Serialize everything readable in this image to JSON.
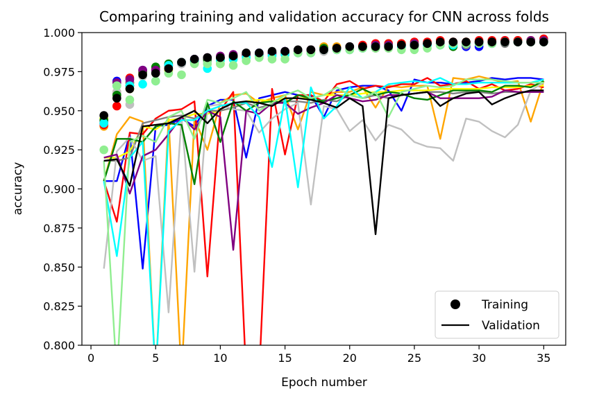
{
  "chart_data": {
    "type": "line",
    "title": "Comparing training and validation accuracy for CNN across folds",
    "xlabel": "Epoch number",
    "ylabel": "accuracy",
    "xlim": [
      -0.7,
      36.7
    ],
    "ylim": [
      0.8,
      1.0
    ],
    "xticks": [
      0,
      5,
      10,
      15,
      20,
      25,
      30,
      35
    ],
    "yticks": [
      0.8,
      0.825,
      0.85,
      0.875,
      0.9,
      0.925,
      0.95,
      0.975,
      1.0
    ],
    "ytick_labels": [
      "0.800",
      "0.825",
      "0.850",
      "0.875",
      "0.900",
      "0.925",
      "0.950",
      "0.975",
      "1.000"
    ],
    "legend": {
      "position": "bottom-right",
      "entries": [
        {
          "label": "Training",
          "marker": "circle",
          "color": "#000000"
        },
        {
          "label": "Validation",
          "marker": "line",
          "color": "#000000"
        }
      ]
    },
    "epochs": [
      1,
      2,
      3,
      4,
      5,
      6,
      7,
      8,
      9,
      10,
      11,
      12,
      13,
      14,
      15,
      16,
      17,
      18,
      19,
      20,
      21,
      22,
      23,
      24,
      25,
      26,
      27,
      28,
      29,
      30,
      31,
      32,
      33,
      34,
      35
    ],
    "series": [
      {
        "color": "#0000ff",
        "training": [
          0.942,
          0.969,
          0.968,
          0.976,
          0.976,
          0.979,
          0.981,
          0.983,
          0.982,
          0.984,
          0.985,
          0.986,
          0.987,
          0.987,
          0.988,
          0.988,
          0.989,
          0.99,
          0.99,
          0.991,
          0.991,
          0.992,
          0.992,
          0.992,
          0.992,
          0.993,
          0.993,
          0.993,
          0.991,
          0.991,
          0.994,
          0.995,
          0.995,
          0.995,
          0.995
        ],
        "validation": [
          0.905,
          0.905,
          0.935,
          0.849,
          0.94,
          0.941,
          0.945,
          0.94,
          0.953,
          0.957,
          0.957,
          0.92,
          0.958,
          0.96,
          0.962,
          0.96,
          0.96,
          0.946,
          0.963,
          0.965,
          0.966,
          0.966,
          0.963,
          0.95,
          0.97,
          0.968,
          0.968,
          0.967,
          0.968,
          0.969,
          0.971,
          0.97,
          0.971,
          0.971,
          0.97
        ]
      },
      {
        "color": "#ffa500",
        "training": [
          0.94,
          0.962,
          0.968,
          0.975,
          0.977,
          0.978,
          0.981,
          0.982,
          0.983,
          0.98,
          0.983,
          0.985,
          0.985,
          0.986,
          0.987,
          0.988,
          0.989,
          0.991,
          0.991,
          0.99,
          0.991,
          0.992,
          0.993,
          0.993,
          0.992,
          0.993,
          0.993,
          0.992,
          0.994,
          0.994,
          0.994,
          0.994,
          0.995,
          0.995,
          0.995
        ],
        "validation": [
          0.905,
          0.935,
          0.946,
          0.943,
          0.78,
          0.945,
          0.78,
          0.945,
          0.925,
          0.955,
          0.96,
          0.961,
          0.955,
          0.958,
          0.96,
          0.938,
          0.962,
          0.96,
          0.962,
          0.962,
          0.965,
          0.952,
          0.966,
          0.965,
          0.966,
          0.966,
          0.932,
          0.971,
          0.97,
          0.972,
          0.97,
          0.968,
          0.969,
          0.943,
          0.969
        ]
      },
      {
        "color": "#ff0000",
        "training": [
          0.941,
          0.953,
          0.971,
          0.974,
          0.976,
          0.976,
          0.981,
          0.982,
          0.983,
          0.983,
          0.984,
          0.986,
          0.986,
          0.987,
          0.987,
          0.988,
          0.989,
          0.989,
          0.99,
          0.991,
          0.992,
          0.993,
          0.993,
          0.993,
          0.994,
          0.994,
          0.995,
          0.994,
          0.994,
          0.995,
          0.995,
          0.995,
          0.995,
          0.995,
          0.996
        ],
        "validation": [
          0.905,
          0.879,
          0.936,
          0.935,
          0.945,
          0.95,
          0.951,
          0.956,
          0.844,
          0.95,
          0.962,
          0.78,
          0.78,
          0.964,
          0.922,
          0.96,
          0.96,
          0.956,
          0.967,
          0.969,
          0.964,
          0.966,
          0.965,
          0.967,
          0.967,
          0.971,
          0.966,
          0.967,
          0.969,
          0.964,
          0.967,
          0.963,
          0.964,
          0.967,
          0.965
        ]
      },
      {
        "color": "#ffff00",
        "training": [
          0.945,
          0.96,
          0.964,
          0.974,
          0.974,
          0.976,
          0.981,
          0.981,
          0.983,
          0.982,
          0.983,
          0.985,
          0.986,
          0.986,
          0.987,
          0.988,
          0.988,
          0.989,
          0.99,
          0.99,
          0.991,
          0.991,
          0.992,
          0.992,
          0.993,
          0.993,
          0.993,
          0.993,
          0.993,
          0.994,
          0.994,
          0.994,
          0.994,
          0.995,
          0.995
        ],
        "validation": [
          0.92,
          0.92,
          0.924,
          0.94,
          0.938,
          0.944,
          0.945,
          0.948,
          0.948,
          0.95,
          0.952,
          0.956,
          0.957,
          0.956,
          0.958,
          0.958,
          0.958,
          0.96,
          0.96,
          0.96,
          0.961,
          0.962,
          0.962,
          0.963,
          0.963,
          0.963,
          0.964,
          0.964,
          0.964,
          0.964,
          0.965,
          0.965,
          0.965,
          0.966,
          0.966
        ]
      },
      {
        "color": "#808080",
        "training": [
          0.943,
          0.961,
          0.968,
          0.974,
          0.975,
          0.977,
          0.98,
          0.981,
          0.982,
          0.983,
          0.984,
          0.985,
          0.985,
          0.986,
          0.986,
          0.987,
          0.987,
          0.988,
          0.989,
          0.989,
          0.99,
          0.99,
          0.99,
          0.991,
          0.991,
          0.992,
          0.992,
          0.992,
          0.992,
          0.993,
          0.993,
          0.993,
          0.994,
          0.994,
          0.994
        ],
        "validation": [
          0.918,
          0.918,
          0.92,
          0.942,
          0.944,
          0.946,
          0.947,
          0.945,
          0.95,
          0.95,
          0.952,
          0.955,
          0.952,
          0.954,
          0.956,
          0.956,
          0.955,
          0.957,
          0.956,
          0.96,
          0.958,
          0.96,
          0.958,
          0.96,
          0.961,
          0.962,
          0.962,
          0.961,
          0.962,
          0.962,
          0.961,
          0.962,
          0.962,
          0.962,
          0.962
        ]
      },
      {
        "color": "#c0c0c0",
        "training": [
          0.942,
          0.962,
          0.954,
          0.972,
          0.974,
          0.977,
          0.98,
          0.981,
          0.982,
          0.983,
          0.983,
          0.985,
          0.985,
          0.986,
          0.986,
          0.987,
          0.988,
          0.988,
          0.989,
          0.989,
          0.99,
          0.991,
          0.991,
          0.991,
          0.992,
          0.992,
          0.992,
          0.993,
          0.993,
          0.993,
          0.993,
          0.994,
          0.994,
          0.994,
          0.994
        ],
        "validation": [
          0.849,
          0.924,
          0.933,
          0.918,
          0.921,
          0.821,
          0.946,
          0.847,
          0.953,
          0.954,
          0.951,
          0.95,
          0.936,
          0.945,
          0.951,
          0.955,
          0.89,
          0.953,
          0.951,
          0.937,
          0.944,
          0.931,
          0.941,
          0.938,
          0.93,
          0.927,
          0.926,
          0.918,
          0.945,
          0.943,
          0.937,
          0.933,
          0.941,
          0.963,
          0.968
        ]
      },
      {
        "color": "#008000",
        "training": [
          0.944,
          0.96,
          0.966,
          0.975,
          0.978,
          0.98,
          0.981,
          0.982,
          0.983,
          0.984,
          0.985,
          0.986,
          0.986,
          0.987,
          0.987,
          0.988,
          0.989,
          0.99,
          0.99,
          0.991,
          0.991,
          0.991,
          0.992,
          0.992,
          0.992,
          0.993,
          0.993,
          0.991,
          0.993,
          0.994,
          0.994,
          0.994,
          0.994,
          0.994,
          0.994
        ],
        "validation": [
          0.905,
          0.932,
          0.932,
          0.93,
          0.94,
          0.942,
          0.941,
          0.903,
          0.955,
          0.93,
          0.956,
          0.95,
          0.955,
          0.956,
          0.955,
          0.96,
          0.958,
          0.956,
          0.958,
          0.96,
          0.964,
          0.96,
          0.962,
          0.961,
          0.958,
          0.957,
          0.96,
          0.963,
          0.963,
          0.963,
          0.962,
          0.966,
          0.966,
          0.965,
          0.969
        ]
      },
      {
        "color": "#800080",
        "training": [
          0.942,
          0.968,
          0.97,
          0.976,
          0.976,
          0.979,
          0.981,
          0.983,
          0.984,
          0.985,
          0.986,
          0.986,
          0.986,
          0.987,
          0.988,
          0.988,
          0.989,
          0.989,
          0.99,
          0.991,
          0.991,
          0.992,
          0.992,
          0.992,
          0.993,
          0.993,
          0.993,
          0.993,
          0.993,
          0.994,
          0.994,
          0.994,
          0.994,
          0.995,
          0.995
        ],
        "validation": [
          0.92,
          0.922,
          0.897,
          0.921,
          0.925,
          0.935,
          0.946,
          0.938,
          0.95,
          0.946,
          0.861,
          0.95,
          0.948,
          0.955,
          0.955,
          0.948,
          0.952,
          0.955,
          0.96,
          0.958,
          0.956,
          0.957,
          0.96,
          0.96,
          0.961,
          0.962,
          0.958,
          0.958,
          0.958,
          0.958,
          0.959,
          0.963,
          0.962,
          0.962,
          0.962
        ]
      },
      {
        "color": "#00ffff",
        "training": [
          0.942,
          0.966,
          0.966,
          0.967,
          0.969,
          0.979,
          0.981,
          0.982,
          0.977,
          0.982,
          0.983,
          0.984,
          0.985,
          0.985,
          0.986,
          0.987,
          0.987,
          0.989,
          0.989,
          0.989,
          0.99,
          0.991,
          0.991,
          0.991,
          0.992,
          0.992,
          0.992,
          0.992,
          0.993,
          0.993,
          0.993,
          0.994,
          0.994,
          0.994,
          0.994
        ],
        "validation": [
          0.905,
          0.857,
          0.92,
          0.93,
          0.78,
          0.937,
          0.944,
          0.944,
          0.95,
          0.953,
          0.955,
          0.955,
          0.946,
          0.914,
          0.958,
          0.901,
          0.965,
          0.945,
          0.953,
          0.965,
          0.958,
          0.962,
          0.967,
          0.968,
          0.969,
          0.968,
          0.971,
          0.967,
          0.967,
          0.968,
          0.968,
          0.968,
          0.968,
          0.968,
          0.97
        ]
      },
      {
        "color": "#90ee90",
        "training": [
          0.925,
          0.966,
          0.957,
          0.973,
          0.969,
          0.974,
          0.973,
          0.98,
          0.98,
          0.98,
          0.979,
          0.982,
          0.984,
          0.983,
          0.983,
          0.987,
          0.987,
          0.989,
          0.989,
          0.989,
          0.99,
          0.99,
          0.99,
          0.989,
          0.989,
          0.99,
          0.992,
          0.993,
          0.993,
          0.993,
          0.993,
          0.994,
          0.994,
          0.994,
          0.994
        ],
        "validation": [
          0.918,
          0.78,
          0.93,
          0.934,
          0.93,
          0.946,
          0.95,
          0.932,
          0.957,
          0.955,
          0.958,
          0.962,
          0.95,
          0.955,
          0.96,
          0.963,
          0.958,
          0.96,
          0.965,
          0.96,
          0.958,
          0.962,
          0.946,
          0.962,
          0.964,
          0.966,
          0.965,
          0.966,
          0.97,
          0.97,
          0.97,
          0.969,
          0.968,
          0.968,
          0.968
        ]
      },
      {
        "color": "#000000",
        "training": [
          0.947,
          0.958,
          0.964,
          0.973,
          0.974,
          0.977,
          0.981,
          0.983,
          0.984,
          0.984,
          0.985,
          0.987,
          0.987,
          0.988,
          0.988,
          0.989,
          0.989,
          0.989,
          0.99,
          0.991,
          0.991,
          0.991,
          0.991,
          0.992,
          0.992,
          0.993,
          0.994,
          0.994,
          0.994,
          0.994,
          0.994,
          0.994,
          0.994,
          0.994,
          0.994
        ],
        "validation": [
          0.918,
          0.919,
          0.902,
          0.94,
          0.941,
          0.942,
          0.946,
          0.95,
          0.942,
          0.951,
          0.955,
          0.956,
          0.955,
          0.953,
          0.958,
          0.958,
          0.957,
          0.955,
          0.952,
          0.958,
          0.953,
          0.871,
          0.958,
          0.96,
          0.961,
          0.962,
          0.953,
          0.958,
          0.961,
          0.962,
          0.954,
          0.958,
          0.961,
          0.963,
          0.963
        ]
      }
    ]
  }
}
